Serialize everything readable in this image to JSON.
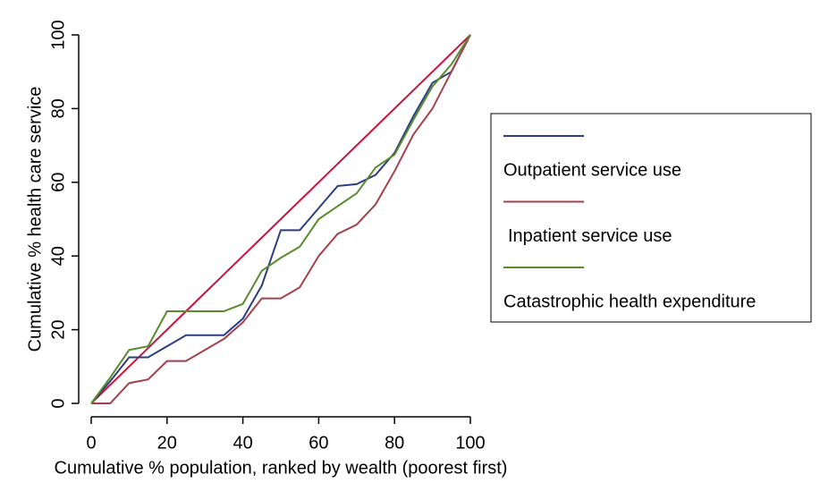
{
  "chart_data": {
    "type": "line",
    "xlabel": "Cumulative % population, ranked by wealth (poorest first)",
    "ylabel": "Cumulative % health care service",
    "x": [
      0,
      5,
      10,
      15,
      20,
      25,
      30,
      35,
      40,
      45,
      50,
      55,
      60,
      65,
      70,
      75,
      80,
      85,
      90,
      95,
      100
    ],
    "series": [
      {
        "color": "#c8143c",
        "values": [
          0,
          5,
          10,
          15,
          20,
          25,
          30,
          35,
          40,
          45,
          50,
          55,
          60,
          65,
          70,
          75,
          80,
          85,
          90,
          95,
          100
        ]
      },
      {
        "name": "Outpatient service use",
        "color": "#2b3f80",
        "values": [
          0,
          6,
          12.5,
          12.5,
          15.5,
          18.5,
          18.5,
          18.5,
          23,
          32,
          47,
          47,
          53,
          59,
          59.5,
          62,
          68,
          78,
          87,
          90,
          100
        ]
      },
      {
        "name": "Inpatient service use",
        "color": "#a3404c",
        "values": [
          0,
          0,
          5.5,
          6.5,
          11.5,
          11.5,
          14.5,
          17.5,
          22,
          28.5,
          28.5,
          31.5,
          40,
          46,
          48.5,
          54,
          63,
          73,
          80,
          90,
          100
        ]
      },
      {
        "name": "Catastrophic health expenditure",
        "color": "#5a8a2e",
        "values": [
          0,
          7,
          14.5,
          15.5,
          25,
          25,
          25,
          25,
          27,
          36,
          39.5,
          42.5,
          50,
          53.5,
          57,
          64,
          67.5,
          77,
          86,
          92,
          100
        ]
      }
    ],
    "xlim": [
      0,
      100
    ],
    "xticks": [
      0,
      20,
      40,
      60,
      80,
      100
    ],
    "ylim": [
      0,
      100
    ],
    "yticks": [
      0,
      20,
      40,
      60,
      80,
      100
    ],
    "legend": "right"
  }
}
